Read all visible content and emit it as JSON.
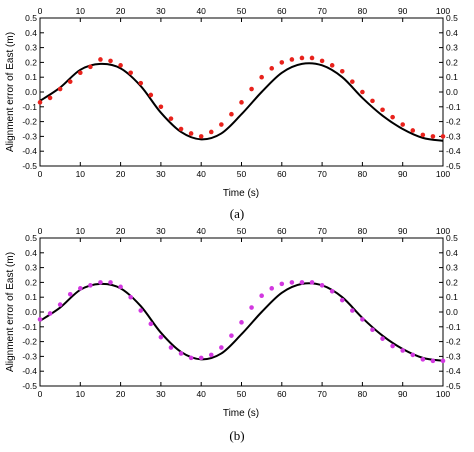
{
  "chart_data": [
    {
      "type": "line",
      "panel_label": "(a)",
      "xlabel": "Time (s)",
      "ylabel": "Alignment error of East (m)",
      "xlim": [
        0,
        100
      ],
      "ylim": [
        -0.5,
        0.5
      ],
      "x_ticks": [
        "0",
        "10",
        "20",
        "30",
        "40",
        "50",
        "60",
        "70",
        "80",
        "90",
        "100"
      ],
      "y_ticks": [
        "0.5",
        "0.4",
        "0.3",
        "0.2",
        "0.1",
        "0.0",
        "-0.1",
        "-0.2",
        "-0.3",
        "-0.4",
        "-0.5"
      ],
      "grid": false,
      "series": [
        {
          "style": "solid-line",
          "color": "#000000",
          "x": [
            0,
            5,
            10,
            15,
            20,
            25,
            30,
            35,
            40,
            45,
            50,
            55,
            60,
            65,
            70,
            75,
            80,
            85,
            90,
            95,
            100
          ],
          "y": [
            -0.06,
            0.03,
            0.15,
            0.19,
            0.16,
            0.04,
            -0.14,
            -0.27,
            -0.32,
            -0.28,
            -0.15,
            0.0,
            0.13,
            0.19,
            0.18,
            0.1,
            -0.04,
            -0.16,
            -0.25,
            -0.31,
            -0.33
          ]
        },
        {
          "style": "dots",
          "color": "#e8221c",
          "x": [
            0,
            2.5,
            5,
            7.5,
            10,
            12.5,
            15,
            17.5,
            20,
            22.5,
            25,
            27.5,
            30,
            32.5,
            35,
            37.5,
            40,
            42.5,
            45,
            47.5,
            50,
            52.5,
            55,
            57.5,
            60,
            62.5,
            65,
            67.5,
            70,
            72.5,
            75,
            77.5,
            80,
            82.5,
            85,
            87.5,
            90,
            92.5,
            95,
            97.5,
            100
          ],
          "y": [
            -0.07,
            -0.04,
            0.02,
            0.07,
            0.13,
            0.17,
            0.22,
            0.21,
            0.18,
            0.13,
            0.06,
            -0.02,
            -0.1,
            -0.18,
            -0.25,
            -0.28,
            -0.3,
            -0.27,
            -0.22,
            -0.15,
            -0.07,
            0.02,
            0.1,
            0.16,
            0.2,
            0.22,
            0.23,
            0.23,
            0.21,
            0.18,
            0.14,
            0.07,
            0.0,
            -0.06,
            -0.12,
            -0.17,
            -0.22,
            -0.26,
            -0.29,
            -0.3,
            -0.3
          ]
        }
      ]
    },
    {
      "type": "line",
      "panel_label": "(b)",
      "xlabel": "Time (s)",
      "ylabel": "Alignment error of East (m)",
      "xlim": [
        0,
        100
      ],
      "ylim": [
        -0.5,
        0.5
      ],
      "x_ticks": [
        "0",
        "10",
        "20",
        "30",
        "40",
        "50",
        "60",
        "70",
        "80",
        "90",
        "100"
      ],
      "y_ticks": [
        "0.5",
        "0.4",
        "0.3",
        "0.2",
        "0.1",
        "0.0",
        "-0.1",
        "-0.2",
        "-0.3",
        "-0.4",
        "-0.5"
      ],
      "grid": false,
      "series": [
        {
          "style": "solid-line",
          "color": "#000000",
          "x": [
            0,
            5,
            10,
            15,
            20,
            25,
            30,
            35,
            40,
            45,
            50,
            55,
            60,
            65,
            70,
            75,
            80,
            85,
            90,
            95,
            100
          ],
          "y": [
            -0.06,
            0.03,
            0.15,
            0.19,
            0.16,
            0.04,
            -0.14,
            -0.27,
            -0.32,
            -0.28,
            -0.15,
            0.0,
            0.13,
            0.19,
            0.18,
            0.1,
            -0.04,
            -0.16,
            -0.25,
            -0.31,
            -0.33
          ]
        },
        {
          "style": "dots",
          "color": "#d238e0",
          "x": [
            0,
            2.5,
            5,
            7.5,
            10,
            12.5,
            15,
            17.5,
            20,
            22.5,
            25,
            27.5,
            30,
            32.5,
            35,
            37.5,
            40,
            42.5,
            45,
            47.5,
            50,
            52.5,
            55,
            57.5,
            60,
            62.5,
            65,
            67.5,
            70,
            72.5,
            75,
            77.5,
            80,
            82.5,
            85,
            87.5,
            90,
            92.5,
            95,
            97.5,
            100
          ],
          "y": [
            -0.05,
            -0.01,
            0.05,
            0.12,
            0.16,
            0.18,
            0.2,
            0.2,
            0.17,
            0.1,
            0.01,
            -0.08,
            -0.17,
            -0.24,
            -0.28,
            -0.31,
            -0.31,
            -0.29,
            -0.24,
            -0.16,
            -0.07,
            0.03,
            0.11,
            0.16,
            0.19,
            0.2,
            0.2,
            0.2,
            0.18,
            0.14,
            0.08,
            0.01,
            -0.05,
            -0.12,
            -0.18,
            -0.23,
            -0.26,
            -0.29,
            -0.32,
            -0.33,
            -0.33
          ]
        }
      ]
    }
  ]
}
